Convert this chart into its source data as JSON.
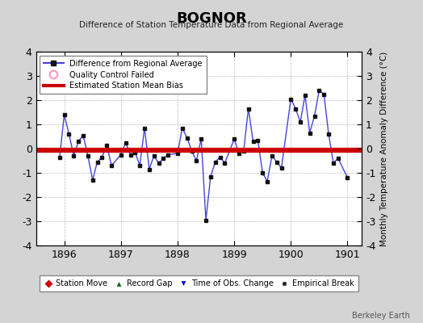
{
  "title": "BOGNOR",
  "subtitle": "Difference of Station Temperature Data from Regional Average",
  "ylabel_right": "Monthly Temperature Anomaly Difference (°C)",
  "credit": "Berkeley Earth",
  "xlim": [
    1895.5,
    1901.25
  ],
  "ylim": [
    -4,
    4
  ],
  "yticks": [
    -4,
    -3,
    -2,
    -1,
    0,
    1,
    2,
    3,
    4
  ],
  "xtick_years": [
    1896,
    1897,
    1898,
    1899,
    1900,
    1901
  ],
  "background_color": "#d4d4d4",
  "plot_bg_color": "#ffffff",
  "line_color": "#4444dd",
  "marker_color": "#111111",
  "bias_color": "#cc0000",
  "months": [
    1895.917,
    1896.0,
    1896.083,
    1896.167,
    1896.25,
    1896.333,
    1896.417,
    1896.5,
    1896.583,
    1896.667,
    1896.75,
    1896.833,
    1897.0,
    1897.083,
    1897.167,
    1897.25,
    1897.333,
    1897.417,
    1897.5,
    1897.583,
    1897.667,
    1897.75,
    1897.833,
    1898.0,
    1898.083,
    1898.167,
    1898.25,
    1898.333,
    1898.417,
    1898.5,
    1898.583,
    1898.667,
    1898.75,
    1898.833,
    1899.0,
    1899.083,
    1899.167,
    1899.25,
    1899.333,
    1899.417,
    1899.5,
    1899.583,
    1899.667,
    1899.75,
    1899.833,
    1900.0,
    1900.083,
    1900.167,
    1900.25,
    1900.333,
    1900.417,
    1900.5,
    1900.583,
    1900.667,
    1900.75,
    1900.833,
    1901.0
  ],
  "values": [
    -0.35,
    1.4,
    0.6,
    -0.3,
    0.3,
    0.55,
    -0.3,
    -1.3,
    -0.55,
    -0.35,
    0.15,
    -0.7,
    -0.25,
    0.25,
    -0.25,
    -0.15,
    -0.7,
    0.85,
    -0.85,
    -0.3,
    -0.6,
    -0.4,
    -0.25,
    -0.2,
    0.85,
    0.45,
    -0.1,
    -0.5,
    0.4,
    -2.95,
    -1.15,
    -0.55,
    -0.35,
    -0.6,
    0.4,
    -0.2,
    -0.1,
    1.65,
    0.3,
    0.35,
    -1.0,
    -1.35,
    -0.3,
    -0.55,
    -0.8,
    2.05,
    1.65,
    1.1,
    2.2,
    0.65,
    1.35,
    2.4,
    2.25,
    0.6,
    -0.6,
    -0.4,
    -1.2
  ],
  "bias_start": 1895.5,
  "bias_end": 1901.25,
  "bias_y": -0.05
}
